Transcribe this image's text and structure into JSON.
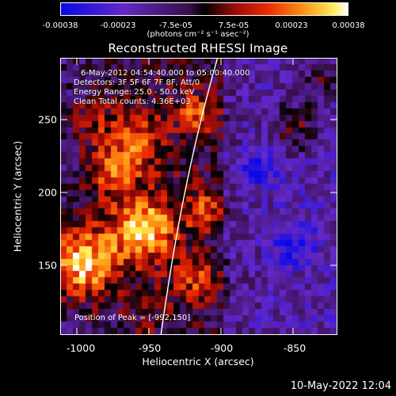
{
  "colorbar": {
    "ticks": [
      "-0.00038",
      "-0.00023",
      "-7.5e-05",
      "7.5e-05",
      "0.00023",
      "0.00038"
    ],
    "units": "(photons cm⁻² s⁻¹ asec⁻²)"
  },
  "title": "Reconstructed RHESSI Image",
  "info": {
    "time_range": "6-May-2012 04:54:40.000 to 05:00:40.000",
    "detectors": "Detectors: 3F 5F 6F 7F 8F, Att/0",
    "energy_range": "Energy Range: 25.0 - 50.0 keV",
    "algorithm": "Clean    Total counts: 4.36E+03"
  },
  "peak": "Position of Peak = [-992,150]",
  "axes": {
    "xlabel": "Heliocentric X (arcsec)",
    "ylabel": "Heliocentric Y (arcsec)",
    "xticks": [
      "-1000",
      "-950",
      "-900",
      "-850"
    ],
    "yticks": [
      "250",
      "200",
      "150"
    ]
  },
  "timestamp": "10-May-2022 12:04"
}
